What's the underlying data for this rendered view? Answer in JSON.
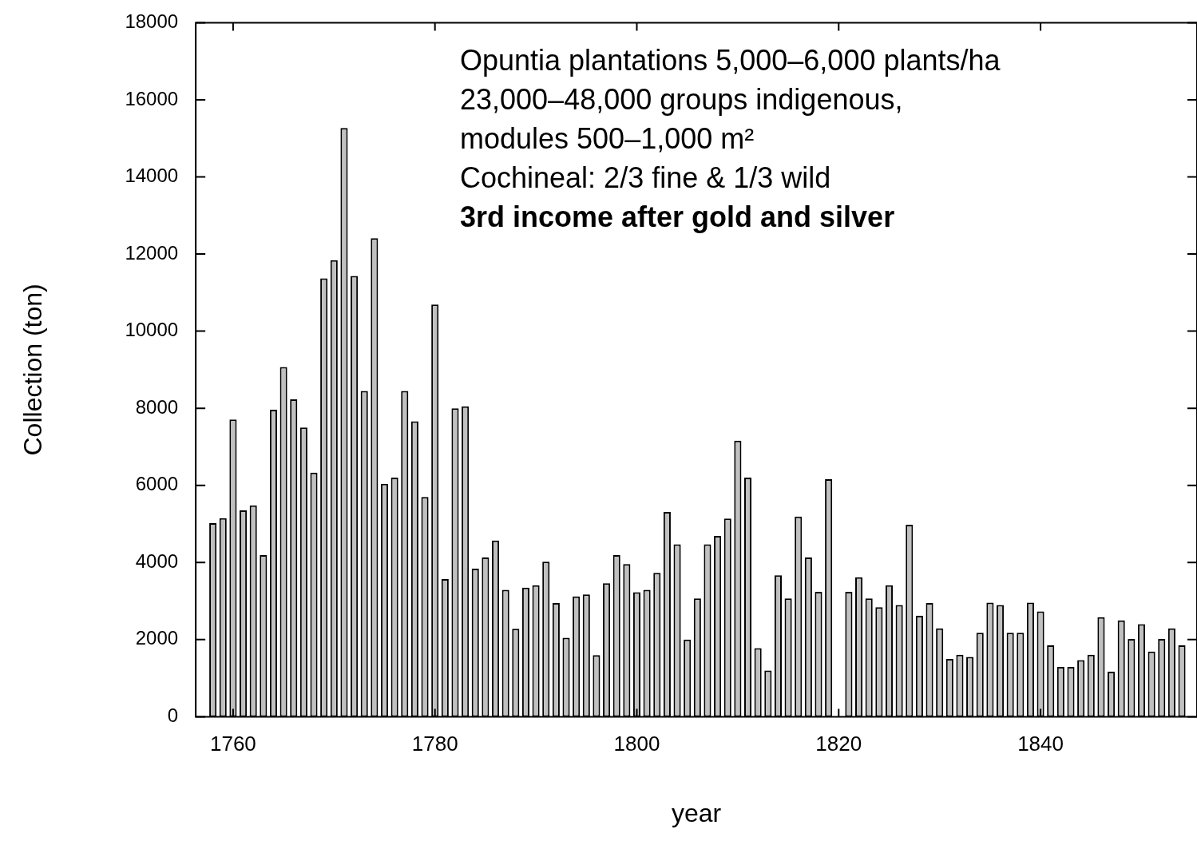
{
  "chart_data": {
    "type": "bar",
    "xlabel": "year",
    "ylabel": "Collection (ton)",
    "x": [
      1758,
      1759,
      1760,
      1761,
      1762,
      1763,
      1764,
      1765,
      1766,
      1767,
      1768,
      1769,
      1770,
      1771,
      1772,
      1773,
      1774,
      1775,
      1776,
      1777,
      1778,
      1779,
      1780,
      1781,
      1782,
      1783,
      1784,
      1785,
      1786,
      1787,
      1788,
      1789,
      1790,
      1791,
      1792,
      1793,
      1794,
      1795,
      1796,
      1797,
      1798,
      1799,
      1800,
      1801,
      1802,
      1803,
      1804,
      1805,
      1806,
      1807,
      1808,
      1809,
      1810,
      1811,
      1812,
      1813,
      1814,
      1815,
      1816,
      1817,
      1818,
      1819,
      1820,
      1821,
      1822,
      1823,
      1824,
      1825,
      1826,
      1827,
      1828,
      1829,
      1830,
      1831,
      1832,
      1833,
      1834,
      1835,
      1836,
      1837,
      1838,
      1839,
      1840,
      1841,
      1842,
      1843,
      1844,
      1845,
      1846,
      1847,
      1848,
      1849,
      1850,
      1851,
      1852,
      1853,
      1854
    ],
    "values": [
      5020,
      5150,
      7710,
      5350,
      5480,
      4190,
      7960,
      9070,
      8230,
      7500,
      6330,
      11370,
      11840,
      15270,
      11430,
      8450,
      12410,
      6040,
      6200,
      8450,
      7660,
      5700,
      10690,
      3570,
      8000,
      8050,
      3840,
      4130,
      4570,
      3290,
      2280,
      3350,
      3410,
      4020,
      2950,
      2050,
      3120,
      3170,
      1600,
      3460,
      4190,
      3960,
      3230,
      3290,
      3730,
      5310,
      4470,
      2000,
      3070,
      4470,
      4690,
      5140,
      7160,
      6200,
      1780,
      1200,
      3670,
      3070,
      5190,
      4130,
      3240,
      6160,
      null,
      3240,
      3620,
      3070,
      2840,
      3410,
      2900,
      4980,
      2620,
      2950,
      2290,
      1500,
      1610,
      1550,
      2180,
      2960,
      2900,
      2180,
      2180,
      2960,
      2730,
      1850,
      1290,
      1290,
      1470,
      1610,
      2580,
      1170,
      2500,
      2020,
      2400,
      1690,
      2020,
      2290,
      1850
    ],
    "color": "#c0c0c0",
    "xlim": [
      1756.3,
      1855.5
    ],
    "xticks": [
      1760,
      1780,
      1800,
      1820,
      1840
    ],
    "ylim": [
      0,
      18000
    ],
    "yticks": [
      0,
      2000,
      4000,
      6000,
      8000,
      10000,
      12000,
      14000,
      16000,
      18000
    ],
    "annotations": [
      "Opuntia plantations 5,000–6,000 plants/ha",
      "23,000–48,000 groups indigenous,",
      "modules 500–1,000 m²",
      "Cochineal: 2/3 fine & 1/3 wild",
      "3rd income after gold and silver"
    ]
  }
}
